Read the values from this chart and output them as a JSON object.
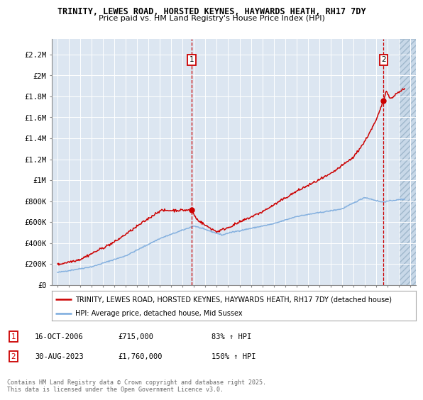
{
  "title_line1": "TRINITY, LEWES ROAD, HORSTED KEYNES, HAYWARDS HEATH, RH17 7DY",
  "title_line2": "Price paid vs. HM Land Registry's House Price Index (HPI)",
  "ylabel_ticks": [
    "£0",
    "£200K",
    "£400K",
    "£600K",
    "£800K",
    "£1M",
    "£1.2M",
    "£1.4M",
    "£1.6M",
    "£1.8M",
    "£2M",
    "£2.2M"
  ],
  "ytick_values": [
    0,
    200000,
    400000,
    600000,
    800000,
    1000000,
    1200000,
    1400000,
    1600000,
    1800000,
    2000000,
    2200000
  ],
  "ylim": [
    0,
    2350000
  ],
  "xlim_start": 1994.5,
  "xlim_end": 2026.5,
  "marker1_x": 2006.79,
  "marker1_y": 715000,
  "marker1_label": "1",
  "marker1_date": "16-OCT-2006",
  "marker1_price": "£715,000",
  "marker1_hpi": "83% ↑ HPI",
  "marker2_x": 2023.66,
  "marker2_y": 1760000,
  "marker2_label": "2",
  "marker2_date": "30-AUG-2023",
  "marker2_price": "£1,760,000",
  "marker2_hpi": "150% ↑ HPI",
  "legend_line1": "TRINITY, LEWES ROAD, HORSTED KEYNES, HAYWARDS HEATH, RH17 7DY (detached house)",
  "legend_line2": "HPI: Average price, detached house, Mid Sussex",
  "footnote": "Contains HM Land Registry data © Crown copyright and database right 2025.\nThis data is licensed under the Open Government Licence v3.0.",
  "property_color": "#cc0000",
  "hpi_color": "#7aaadd",
  "background_color": "#dce6f1",
  "grid_color": "#ffffff",
  "annotation_box_color": "#cc0000",
  "title_fontsize": 8.5,
  "subtitle_fontsize": 8.0,
  "axis_fontsize": 7.5,
  "legend_fontsize": 7.0,
  "footnote_fontsize": 6.0
}
